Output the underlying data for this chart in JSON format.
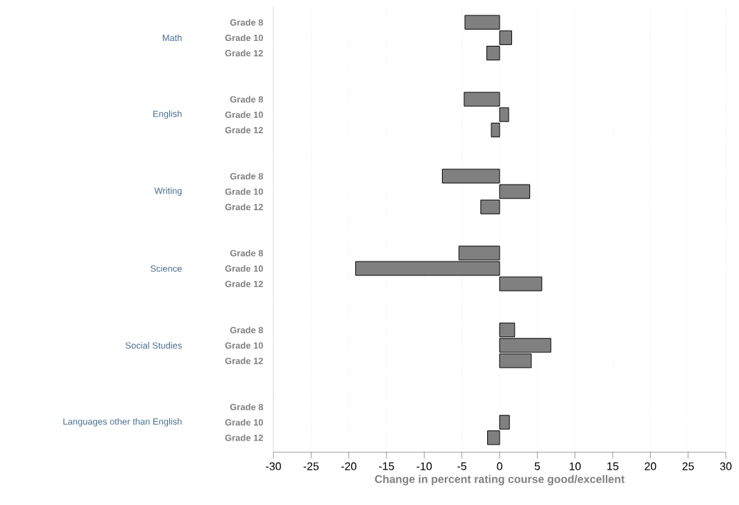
{
  "chart_data": {
    "type": "bar",
    "orientation": "horizontal",
    "categories": [
      "Grade 8",
      "Grade 10",
      "Grade 12",
      null,
      null,
      "Grade 8",
      "Grade 10",
      "Grade 12",
      null,
      null,
      "Grade 8",
      "Grade 10",
      "Grade 12",
      null,
      null,
      "Grade 8",
      "Grade 10",
      "Grade 12",
      null,
      null,
      "Grade 8",
      "Grade 10",
      "Grade 12",
      null,
      null,
      "Grade 8",
      "Grade 10",
      "Grade 12"
    ],
    "values": [
      -4.6,
      1.6,
      -1.7,
      null,
      null,
      -4.7,
      1.2,
      -1.1,
      null,
      null,
      -7.6,
      4.0,
      -2.5,
      null,
      null,
      -5.4,
      -19.1,
      5.6,
      null,
      null,
      2.0,
      6.8,
      4.2,
      null,
      null,
      null,
      1.3,
      -1.6
    ],
    "color": "#808080",
    "xlim": [
      -30,
      30
    ],
    "xticks": [
      -30,
      -25,
      -20,
      -15,
      -10,
      -5,
      0,
      5,
      10,
      15,
      20,
      25,
      30
    ],
    "xlabel": "Change in percent rating course good/excellent",
    "grid": "x",
    "annotations": [
      "Math",
      "English",
      "Writing",
      "Science",
      "Social Studies",
      "Languages other than English"
    ]
  }
}
